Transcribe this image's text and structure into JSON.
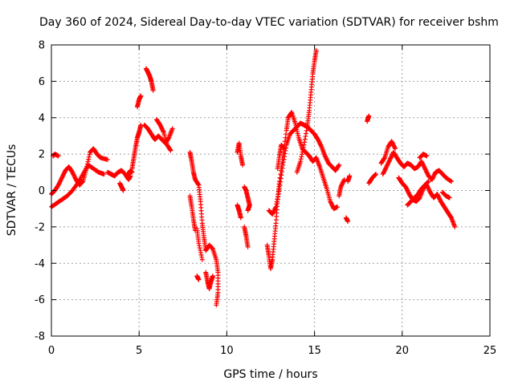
{
  "chart_data": {
    "type": "scatter",
    "title": "Day 360 of 2024, Sidereal Day-to-day VTEC variation (SDTVAR) for receiver bshm",
    "xlabel": "GPS time / hours",
    "ylabel": "SDTVAR / TECUs",
    "xlim": [
      0,
      25
    ],
    "ylim": [
      -8,
      8
    ],
    "xticks": [
      0,
      5,
      10,
      15,
      20,
      25
    ],
    "yticks": [
      -8,
      -6,
      -4,
      -2,
      0,
      2,
      4,
      6,
      8
    ],
    "grid": true,
    "marker": "+",
    "color": "#ff0000",
    "segments": [
      [
        [
          0.0,
          -0.9
        ],
        [
          0.3,
          -0.7
        ],
        [
          0.6,
          -0.5
        ],
        [
          0.9,
          -0.3
        ],
        [
          1.2,
          0.0
        ],
        [
          1.5,
          0.4
        ],
        [
          1.8,
          0.9
        ],
        [
          2.1,
          1.4
        ],
        [
          2.4,
          1.2
        ],
        [
          2.7,
          1.0
        ],
        [
          3.0,
          0.9
        ]
      ],
      [
        [
          0.0,
          -0.2
        ],
        [
          0.2,
          0.0
        ],
        [
          0.4,
          0.3
        ],
        [
          0.6,
          0.7
        ],
        [
          0.8,
          1.1
        ],
        [
          1.0,
          1.3
        ],
        [
          1.2,
          1.0
        ],
        [
          1.4,
          0.6
        ],
        [
          1.6,
          0.3
        ],
        [
          1.8,
          0.5
        ],
        [
          2.0,
          1.2
        ],
        [
          2.2,
          2.1
        ],
        [
          2.4,
          2.3
        ],
        [
          2.6,
          2.0
        ],
        [
          2.8,
          1.8
        ],
        [
          3.2,
          1.7
        ]
      ],
      [
        [
          0.1,
          1.9
        ],
        [
          0.2,
          2.0
        ],
        [
          0.4,
          1.9
        ]
      ],
      [
        [
          3.2,
          1.0
        ],
        [
          3.4,
          0.9
        ],
        [
          3.6,
          0.8
        ],
        [
          3.8,
          1.0
        ],
        [
          4.0,
          1.1
        ],
        [
          4.2,
          0.9
        ],
        [
          4.4,
          0.6
        ],
        [
          4.5,
          0.8
        ]
      ],
      [
        [
          3.9,
          0.4
        ],
        [
          4.0,
          0.2
        ],
        [
          4.1,
          0.0
        ]
      ],
      [
        [
          4.4,
          0.9
        ],
        [
          4.5,
          1.1
        ],
        [
          4.6,
          1.0
        ]
      ],
      [
        [
          4.6,
          1.2
        ],
        [
          4.7,
          1.8
        ],
        [
          4.8,
          2.4
        ],
        [
          4.9,
          2.9
        ],
        [
          5.0,
          3.2
        ],
        [
          5.1,
          3.6
        ]
      ],
      [
        [
          4.9,
          4.6
        ],
        [
          5.0,
          5.0
        ],
        [
          5.1,
          5.2
        ]
      ],
      [
        [
          5.4,
          6.7
        ],
        [
          5.5,
          6.5
        ],
        [
          5.6,
          6.3
        ],
        [
          5.7,
          6.0
        ],
        [
          5.8,
          5.5
        ]
      ],
      [
        [
          5.3,
          3.6
        ],
        [
          5.5,
          3.4
        ],
        [
          5.7,
          3.1
        ],
        [
          5.9,
          2.8
        ],
        [
          6.1,
          3.0
        ],
        [
          6.3,
          2.8
        ],
        [
          6.5,
          2.6
        ],
        [
          6.7,
          2.9
        ],
        [
          6.9,
          3.4
        ]
      ],
      [
        [
          6.0,
          3.9
        ],
        [
          6.2,
          3.6
        ],
        [
          6.4,
          3.2
        ],
        [
          6.6,
          2.5
        ],
        [
          6.8,
          2.2
        ]
      ],
      [
        [
          7.9,
          2.1
        ],
        [
          8.0,
          1.6
        ],
        [
          8.1,
          1.0
        ],
        [
          8.2,
          0.6
        ],
        [
          8.4,
          0.3
        ],
        [
          8.5,
          -0.6
        ],
        [
          8.6,
          -1.8
        ],
        [
          8.7,
          -2.6
        ],
        [
          8.8,
          -3.3
        ],
        [
          9.0,
          -3.0
        ],
        [
          9.2,
          -3.2
        ],
        [
          9.4,
          -3.8
        ],
        [
          9.5,
          -4.5
        ],
        [
          9.5,
          -5.6
        ],
        [
          9.4,
          -6.3
        ]
      ],
      [
        [
          7.9,
          -0.3
        ],
        [
          8.0,
          -0.9
        ],
        [
          8.1,
          -1.6
        ],
        [
          8.2,
          -2.2
        ]
      ],
      [
        [
          8.3,
          -2.1
        ],
        [
          8.4,
          -2.9
        ],
        [
          8.6,
          -3.8
        ]
      ],
      [
        [
          8.3,
          -4.7
        ],
        [
          8.4,
          -4.9
        ]
      ],
      [
        [
          8.8,
          -4.5
        ],
        [
          8.9,
          -5.0
        ],
        [
          9.0,
          -5.4
        ],
        [
          9.1,
          -5.0
        ],
        [
          9.2,
          -4.7
        ]
      ],
      [
        [
          10.6,
          2.1
        ],
        [
          10.7,
          2.6
        ],
        [
          10.8,
          1.9
        ],
        [
          10.9,
          1.4
        ]
      ],
      [
        [
          10.6,
          -0.8
        ],
        [
          10.7,
          -1.1
        ],
        [
          10.8,
          -1.5
        ]
      ],
      [
        [
          11.0,
          -2.0
        ],
        [
          11.1,
          -2.5
        ],
        [
          11.2,
          -3.1
        ]
      ],
      [
        [
          11.0,
          0.2
        ],
        [
          11.1,
          0.0
        ],
        [
          11.2,
          -0.4
        ],
        [
          11.3,
          -0.8
        ],
        [
          11.2,
          -1.1
        ]
      ],
      [
        [
          12.3,
          -3.0
        ],
        [
          12.4,
          -3.6
        ],
        [
          12.5,
          -4.3
        ],
        [
          12.6,
          -3.8
        ],
        [
          12.7,
          -2.8
        ],
        [
          12.8,
          -1.8
        ],
        [
          12.9,
          -0.5
        ],
        [
          13.0,
          0.5
        ],
        [
          13.2,
          1.9
        ],
        [
          13.4,
          3.3
        ],
        [
          13.5,
          4.0
        ],
        [
          13.7,
          4.3
        ],
        [
          13.9,
          3.7
        ],
        [
          14.1,
          2.9
        ],
        [
          14.3,
          2.3
        ],
        [
          14.5,
          2.1
        ],
        [
          14.7,
          1.9
        ],
        [
          14.9,
          1.6
        ],
        [
          15.1,
          1.8
        ],
        [
          15.3,
          1.3
        ],
        [
          15.5,
          0.7
        ],
        [
          15.7,
          0.1
        ],
        [
          15.9,
          -0.6
        ],
        [
          16.1,
          -1.0
        ],
        [
          16.3,
          -0.9
        ]
      ],
      [
        [
          12.4,
          -1.1
        ],
        [
          12.6,
          -1.3
        ],
        [
          12.8,
          -0.9
        ],
        [
          13.0,
          0.1
        ],
        [
          13.2,
          1.4
        ],
        [
          13.4,
          2.5
        ],
        [
          13.6,
          3.1
        ],
        [
          13.8,
          3.3
        ],
        [
          14.0,
          3.5
        ],
        [
          14.2,
          3.7
        ],
        [
          14.4,
          3.6
        ],
        [
          14.6,
          3.5
        ],
        [
          14.8,
          3.3
        ],
        [
          15.0,
          3.1
        ],
        [
          15.2,
          2.8
        ],
        [
          15.4,
          2.4
        ],
        [
          15.6,
          1.9
        ],
        [
          15.8,
          1.5
        ],
        [
          16.0,
          1.3
        ],
        [
          16.2,
          1.1
        ],
        [
          16.4,
          1.4
        ]
      ],
      [
        [
          12.9,
          1.2
        ],
        [
          13.0,
          1.9
        ],
        [
          13.1,
          2.5
        ],
        [
          13.3,
          2.3
        ]
      ],
      [
        [
          14.0,
          1.0
        ],
        [
          14.2,
          1.6
        ],
        [
          14.4,
          2.5
        ],
        [
          14.6,
          3.6
        ],
        [
          14.7,
          4.4
        ],
        [
          14.8,
          5.4
        ],
        [
          14.9,
          6.4
        ],
        [
          15.0,
          7.1
        ],
        [
          15.1,
          7.7
        ]
      ],
      [
        [
          16.4,
          -0.3
        ],
        [
          16.5,
          0.2
        ],
        [
          16.7,
          0.6
        ]
      ],
      [
        [
          16.8,
          -1.5
        ],
        [
          16.9,
          -1.7
        ]
      ],
      [
        [
          16.9,
          0.5
        ],
        [
          17.0,
          0.8
        ]
      ],
      [
        [
          18.0,
          3.8
        ],
        [
          18.1,
          4.1
        ]
      ],
      [
        [
          18.1,
          0.4
        ],
        [
          18.3,
          0.7
        ],
        [
          18.5,
          0.9
        ]
      ],
      [
        [
          18.9,
          0.9
        ],
        [
          19.1,
          1.3
        ],
        [
          19.3,
          1.7
        ],
        [
          19.5,
          2.1
        ],
        [
          19.7,
          1.8
        ],
        [
          19.9,
          1.5
        ],
        [
          20.1,
          1.3
        ],
        [
          20.3,
          1.5
        ],
        [
          20.5,
          1.4
        ],
        [
          20.7,
          1.2
        ],
        [
          20.9,
          1.3
        ],
        [
          21.1,
          1.6
        ],
        [
          21.3,
          1.2
        ],
        [
          21.5,
          0.8
        ],
        [
          21.7,
          0.6
        ],
        [
          21.9,
          1.0
        ],
        [
          22.1,
          1.1
        ],
        [
          22.3,
          0.9
        ],
        [
          22.5,
          0.7
        ],
        [
          22.8,
          0.5
        ]
      ],
      [
        [
          18.8,
          1.5
        ],
        [
          19.0,
          1.8
        ],
        [
          19.2,
          2.4
        ],
        [
          19.4,
          2.7
        ],
        [
          19.6,
          2.3
        ]
      ],
      [
        [
          19.8,
          0.7
        ],
        [
          20.0,
          0.4
        ],
        [
          20.2,
          0.2
        ],
        [
          20.4,
          -0.2
        ],
        [
          20.6,
          -0.5
        ],
        [
          20.8,
          -0.6
        ],
        [
          21.0,
          -0.4
        ],
        [
          21.2,
          0.1
        ],
        [
          21.4,
          0.3
        ],
        [
          21.6,
          -0.1
        ],
        [
          21.8,
          -0.4
        ],
        [
          22.0,
          -0.2
        ],
        [
          22.2,
          -0.6
        ],
        [
          22.4,
          -0.9
        ],
        [
          22.6,
          -1.2
        ],
        [
          22.8,
          -1.5
        ],
        [
          23.0,
          -2.0
        ]
      ],
      [
        [
          20.3,
          -0.8
        ],
        [
          20.5,
          -0.6
        ],
        [
          20.7,
          -0.4
        ],
        [
          20.9,
          -0.2
        ],
        [
          21.1,
          0.1
        ],
        [
          21.3,
          0.3
        ],
        [
          21.5,
          0.5
        ]
      ],
      [
        [
          21.0,
          1.8
        ],
        [
          21.2,
          2.0
        ],
        [
          21.4,
          1.9
        ]
      ],
      [
        [
          22.3,
          -0.1
        ],
        [
          22.5,
          -0.3
        ],
        [
          22.7,
          -0.4
        ]
      ]
    ]
  }
}
